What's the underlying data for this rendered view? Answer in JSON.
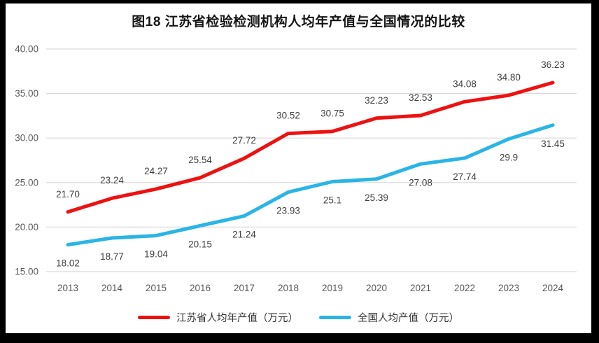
{
  "frame": {
    "background": "#000000",
    "canvas_background": "#ffffff"
  },
  "chart_data": {
    "type": "line",
    "title": "图18  江苏省检验检测机构人均年产值与全国情况的比较",
    "categories": [
      "2013",
      "2014",
      "2015",
      "2016",
      "2017",
      "2018",
      "2019",
      "2020",
      "2021",
      "2022",
      "2023",
      "2024"
    ],
    "series": [
      {
        "name": "江苏省人均年产值（万元）",
        "color": "#EE1111",
        "values": [
          21.7,
          23.24,
          24.27,
          25.54,
          27.72,
          30.52,
          30.75,
          32.23,
          32.53,
          34.08,
          34.8,
          36.23
        ],
        "labels": [
          "21.70",
          "23.24",
          "24.27",
          "25.54",
          "27.72",
          "30.52",
          "30.75",
          "32.23",
          "32.53",
          "34.08",
          "34.80",
          "36.23"
        ],
        "label_position": "above"
      },
      {
        "name": "全国人均产值（万元）",
        "color": "#29B5E5",
        "values": [
          18.02,
          18.77,
          19.04,
          20.15,
          21.24,
          23.93,
          25.1,
          25.39,
          27.08,
          27.74,
          29.9,
          31.45
        ],
        "labels": [
          "18.02",
          "18.77",
          "19.04",
          "20.15",
          "21.24",
          "23.93",
          "25.1",
          "25.39",
          "27.08",
          "27.74",
          "29.9",
          "31.45"
        ],
        "label_position": "below"
      }
    ],
    "y_axis": {
      "min": 15,
      "max": 40,
      "step": 5,
      "tick_labels": [
        "40.00",
        "35.00",
        "30.00",
        "25.00",
        "20.00",
        "15.00"
      ]
    },
    "x_axis": {
      "label": ""
    },
    "grid": true,
    "legend_position": "bottom",
    "colors": {
      "gridline": "#D9D9D9",
      "axis_text": "#595959",
      "data_label_text": "#3F3F3F",
      "title_text": "#151515"
    }
  }
}
